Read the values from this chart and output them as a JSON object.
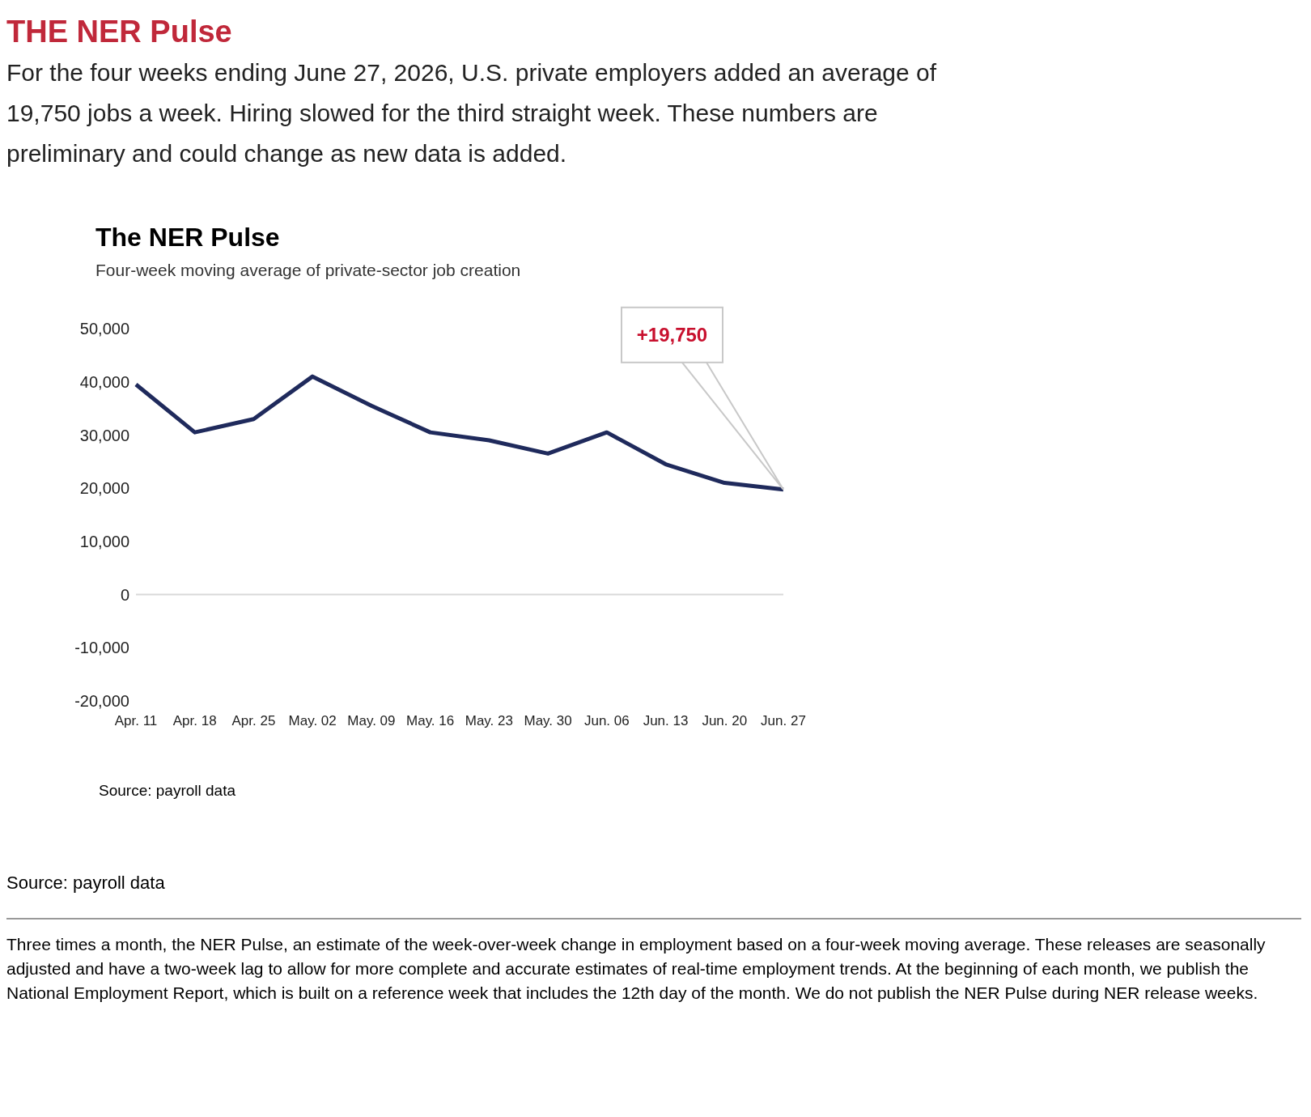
{
  "chart_data": {
    "type": "line",
    "title": "THE NER Pulse",
    "subtitle": "For the four weeks ending June 27, 2026, U.S. private employers added an average of 19,750 jobs a week. Hiring slowed for the third straight week. These numbers are preliminary and could change as new data is added.",
    "annotations": [
      "The NER Pulse",
      "Four-week moving average of private-sector job creation",
      "+19,750",
      "Source: payroll data",
      "Source: payroll data",
      "Three times a month, the NER Pulse, an estimate of the week-over-week change in employment based on a four-week moving average. These releases are seasonally adjusted and have a two-week lag to allow for more complete and accurate estimates of real-time employment trends. At the beginning of each month, we publish the National Employment Report, which is built on a reference week that includes the 12th day of the month. We do not publish the NER Pulse during NER release weeks."
    ],
    "categories": [
      "Apr. 11",
      "Apr. 18",
      "Apr. 25",
      "May. 02",
      "May. 09",
      "May. 16",
      "May. 23",
      "May. 30",
      "Jun. 06",
      "Jun. 13",
      "Jun. 20",
      "Jun. 27"
    ],
    "series": [
      {
        "color": "#1f2a5c",
        "values": [
          39500,
          30500,
          33000,
          41000,
          35500,
          30500,
          29000,
          26500,
          30500,
          24500,
          21000,
          19750
        ]
      }
    ],
    "ylim": [
      -20000,
      50000
    ],
    "yticks": [
      {
        "value": -20000,
        "label": "-20,000"
      },
      {
        "value": -10000,
        "label": "-10,000"
      },
      {
        "value": 0,
        "label": "0"
      },
      {
        "value": 10000,
        "label": "10,000"
      },
      {
        "value": 20000,
        "label": "20,000"
      },
      {
        "value": 30000,
        "label": "30,000"
      },
      {
        "value": 40000,
        "label": "40,000"
      },
      {
        "value": 50000,
        "label": "50,000"
      }
    ],
    "ref_lines": [
      {
        "axis": "y",
        "value": 0,
        "color": "#d9d9d9"
      }
    ],
    "grid": false,
    "legend": false,
    "marker": "none",
    "line_style": "solid"
  }
}
